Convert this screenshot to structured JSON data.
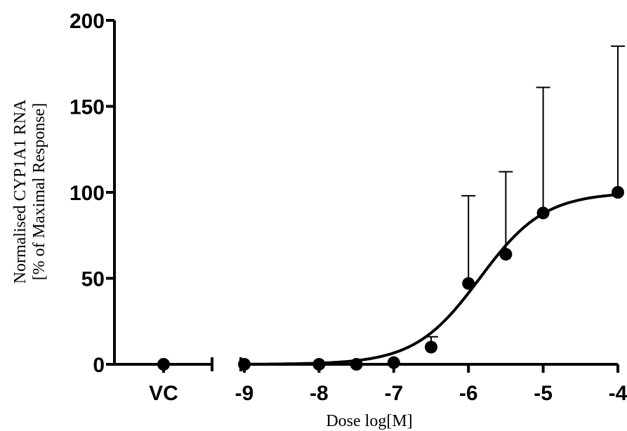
{
  "chart_data": {
    "type": "scatter",
    "xlabel": "Dose log[M]",
    "ylabel": [
      "Normalised CYP1A1 RNA",
      "[% of Maximal Response]"
    ],
    "ylim": [
      0,
      200
    ],
    "yticks": [
      0,
      50,
      100,
      150,
      200
    ],
    "xlim": [
      -9,
      -4
    ],
    "xticks": [
      -9,
      -8,
      -7,
      -6,
      -5,
      -4
    ],
    "control_label": "VC",
    "control_point": {
      "label": "VC",
      "y": 0
    },
    "series": [
      {
        "points": [
          {
            "x": -9,
            "y": 0,
            "err": 0
          },
          {
            "x": -8,
            "y": 0,
            "err": 0
          },
          {
            "x": -7.5,
            "y": 0,
            "err": 0
          },
          {
            "x": -7,
            "y": 1,
            "err": 0
          },
          {
            "x": -6.5,
            "y": 10,
            "err": 6
          },
          {
            "x": -6,
            "y": 47,
            "err": 51
          },
          {
            "x": -5.5,
            "y": 64,
            "err": 48
          },
          {
            "x": -5,
            "y": 88,
            "err": 73
          },
          {
            "x": -4,
            "y": 100,
            "err": 85
          }
        ],
        "fit": {
          "model": "sigmoidal dose-response",
          "bottom": 0,
          "top": 100,
          "logEC50": -5.85,
          "hill": 1
        }
      }
    ],
    "grid": false,
    "axis_break": true
  }
}
